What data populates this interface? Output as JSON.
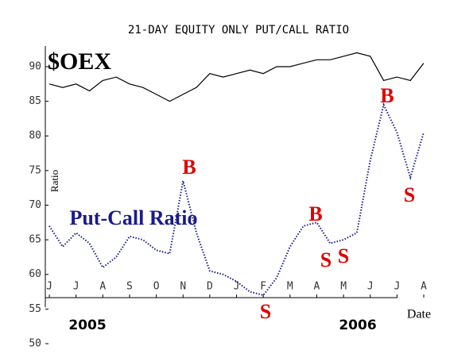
{
  "chart_data": {
    "type": "line",
    "title": "21-DAY EQUITY ONLY PUT/CALL RATIO",
    "x_label": "Date",
    "y_label": "Ratio",
    "years": [
      "2005",
      "2006"
    ],
    "annotations": [
      "$OEX",
      "Put-Call Ratio",
      "B",
      "B",
      "B",
      "S",
      "S",
      "S",
      "S"
    ],
    "x": [
      0,
      0.5,
      1,
      1.5,
      2,
      2.5,
      3,
      3.5,
      4,
      4.5,
      5,
      5.5,
      6,
      6.5,
      7,
      7.5,
      8,
      8.5,
      9,
      9.5,
      10,
      10.5,
      11,
      11.5,
      12,
      12.5,
      13,
      13.5,
      14
    ],
    "series": [
      {
        "name": "$OEX",
        "color": "#000000",
        "values": [
          87.5,
          87,
          87.5,
          86.5,
          88,
          88.5,
          87.5,
          87,
          86,
          85,
          86,
          87,
          89,
          88.5,
          89,
          89.5,
          89,
          90,
          90,
          90.5,
          91,
          91,
          91.5,
          92,
          91.5,
          88,
          88.5,
          88,
          90.5
        ]
      },
      {
        "name": "Put-Call Ratio",
        "color": "#1a1a8c",
        "values": [
          67,
          64,
          66,
          64.5,
          61,
          62.5,
          65.5,
          65,
          63.5,
          63,
          73.5,
          66,
          60.5,
          60,
          59,
          57.5,
          57,
          59.5,
          64,
          67,
          67.5,
          64.5,
          65,
          66,
          76.5,
          84.5,
          80.5,
          74,
          80.5
        ]
      }
    ],
    "xlim": [
      -0.15,
      14.4
    ],
    "xticks": [
      {
        "value": 0,
        "label": "J"
      },
      {
        "value": 1,
        "label": "J"
      },
      {
        "value": 2,
        "label": "A"
      },
      {
        "value": 3,
        "label": "S"
      },
      {
        "value": 4,
        "label": "O"
      },
      {
        "value": 5,
        "label": "N"
      },
      {
        "value": 6,
        "label": "D"
      },
      {
        "value": 7,
        "label": "J"
      },
      {
        "value": 8,
        "label": "F"
      },
      {
        "value": 9,
        "label": "M"
      },
      {
        "value": 10,
        "label": "A"
      },
      {
        "value": 11,
        "label": "M"
      },
      {
        "value": 12,
        "label": "J"
      },
      {
        "value": 13,
        "label": "J"
      },
      {
        "value": 14,
        "label": "A"
      }
    ],
    "ylim": [
      50,
      93
    ],
    "yticks": [
      50,
      55,
      60,
      65,
      70,
      75,
      80,
      85,
      90
    ],
    "grid": false
  }
}
